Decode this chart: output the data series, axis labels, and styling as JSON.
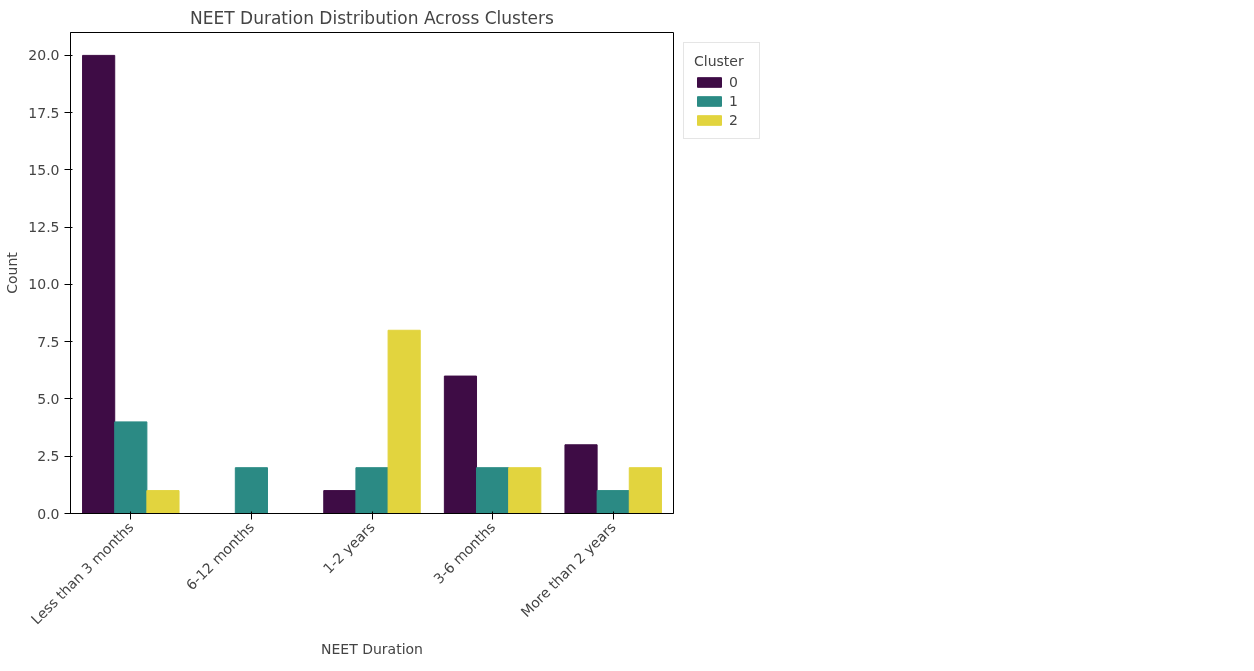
{
  "chart_data": {
    "type": "bar",
    "title": "NEET Duration Distribution Across Clusters",
    "xlabel": "NEET Duration",
    "ylabel": "Count",
    "legend_title": "Cluster",
    "categories": [
      "Less than 3 months",
      "6-12 months",
      "1-2 years",
      "3-6 months",
      "More than 2 years"
    ],
    "series": [
      {
        "name": "0",
        "color": "#3e0c45",
        "values": [
          20,
          0,
          1,
          6,
          3
        ]
      },
      {
        "name": "1",
        "color": "#2b8a84",
        "values": [
          4,
          2,
          2,
          2,
          1
        ]
      },
      {
        "name": "2",
        "color": "#e2d43e",
        "values": [
          1,
          0,
          8,
          2,
          2
        ]
      }
    ],
    "ylim": [
      0,
      21
    ],
    "yticks": [
      {
        "value": 0,
        "label": "0.0"
      },
      {
        "value": 2.5,
        "label": "2.5"
      },
      {
        "value": 5,
        "label": "5.0"
      },
      {
        "value": 7.5,
        "label": "7.5"
      },
      {
        "value": 10,
        "label": "10.0"
      },
      {
        "value": 12.5,
        "label": "12.5"
      },
      {
        "value": 15,
        "label": "15.0"
      },
      {
        "value": 17.5,
        "label": "17.5"
      },
      {
        "value": 20,
        "label": "20.0"
      }
    ],
    "grid": false,
    "legend": "top right"
  }
}
